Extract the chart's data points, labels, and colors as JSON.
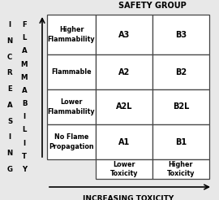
{
  "title_top": "SAFETY GROUP",
  "title_bottom": "INCREASING TOXICITY",
  "left_label_outer": "I\nN\nC\nR\nE\nA\nS\nI\nN\nG",
  "left_label_inner": "F\nL\nA\nM\nM\nA\nB\nI\nL\nI\nT\nY",
  "rows": [
    {
      "label": "Higher\nFlammability",
      "col1": "A3",
      "col2": "B3"
    },
    {
      "label": "Flammable",
      "col1": "A2",
      "col2": "B2"
    },
    {
      "label": "Lower\nFlammability",
      "col1": "A2L",
      "col2": "B2L"
    },
    {
      "label": "No Flame\nPropagation",
      "col1": "A1",
      "col2": "B1"
    }
  ],
  "col_labels": [
    "Lower\nToxicity",
    "Higher\nToxicity"
  ],
  "bg_color": "#e8e8e8",
  "cell_bg": "#ffffff",
  "grid_color": "#444444",
  "text_color": "#000000",
  "label_fontsize": 5.8,
  "cell_fontsize": 7.0,
  "title_fontsize": 7.0,
  "axis_label_fontsize": 6.5
}
